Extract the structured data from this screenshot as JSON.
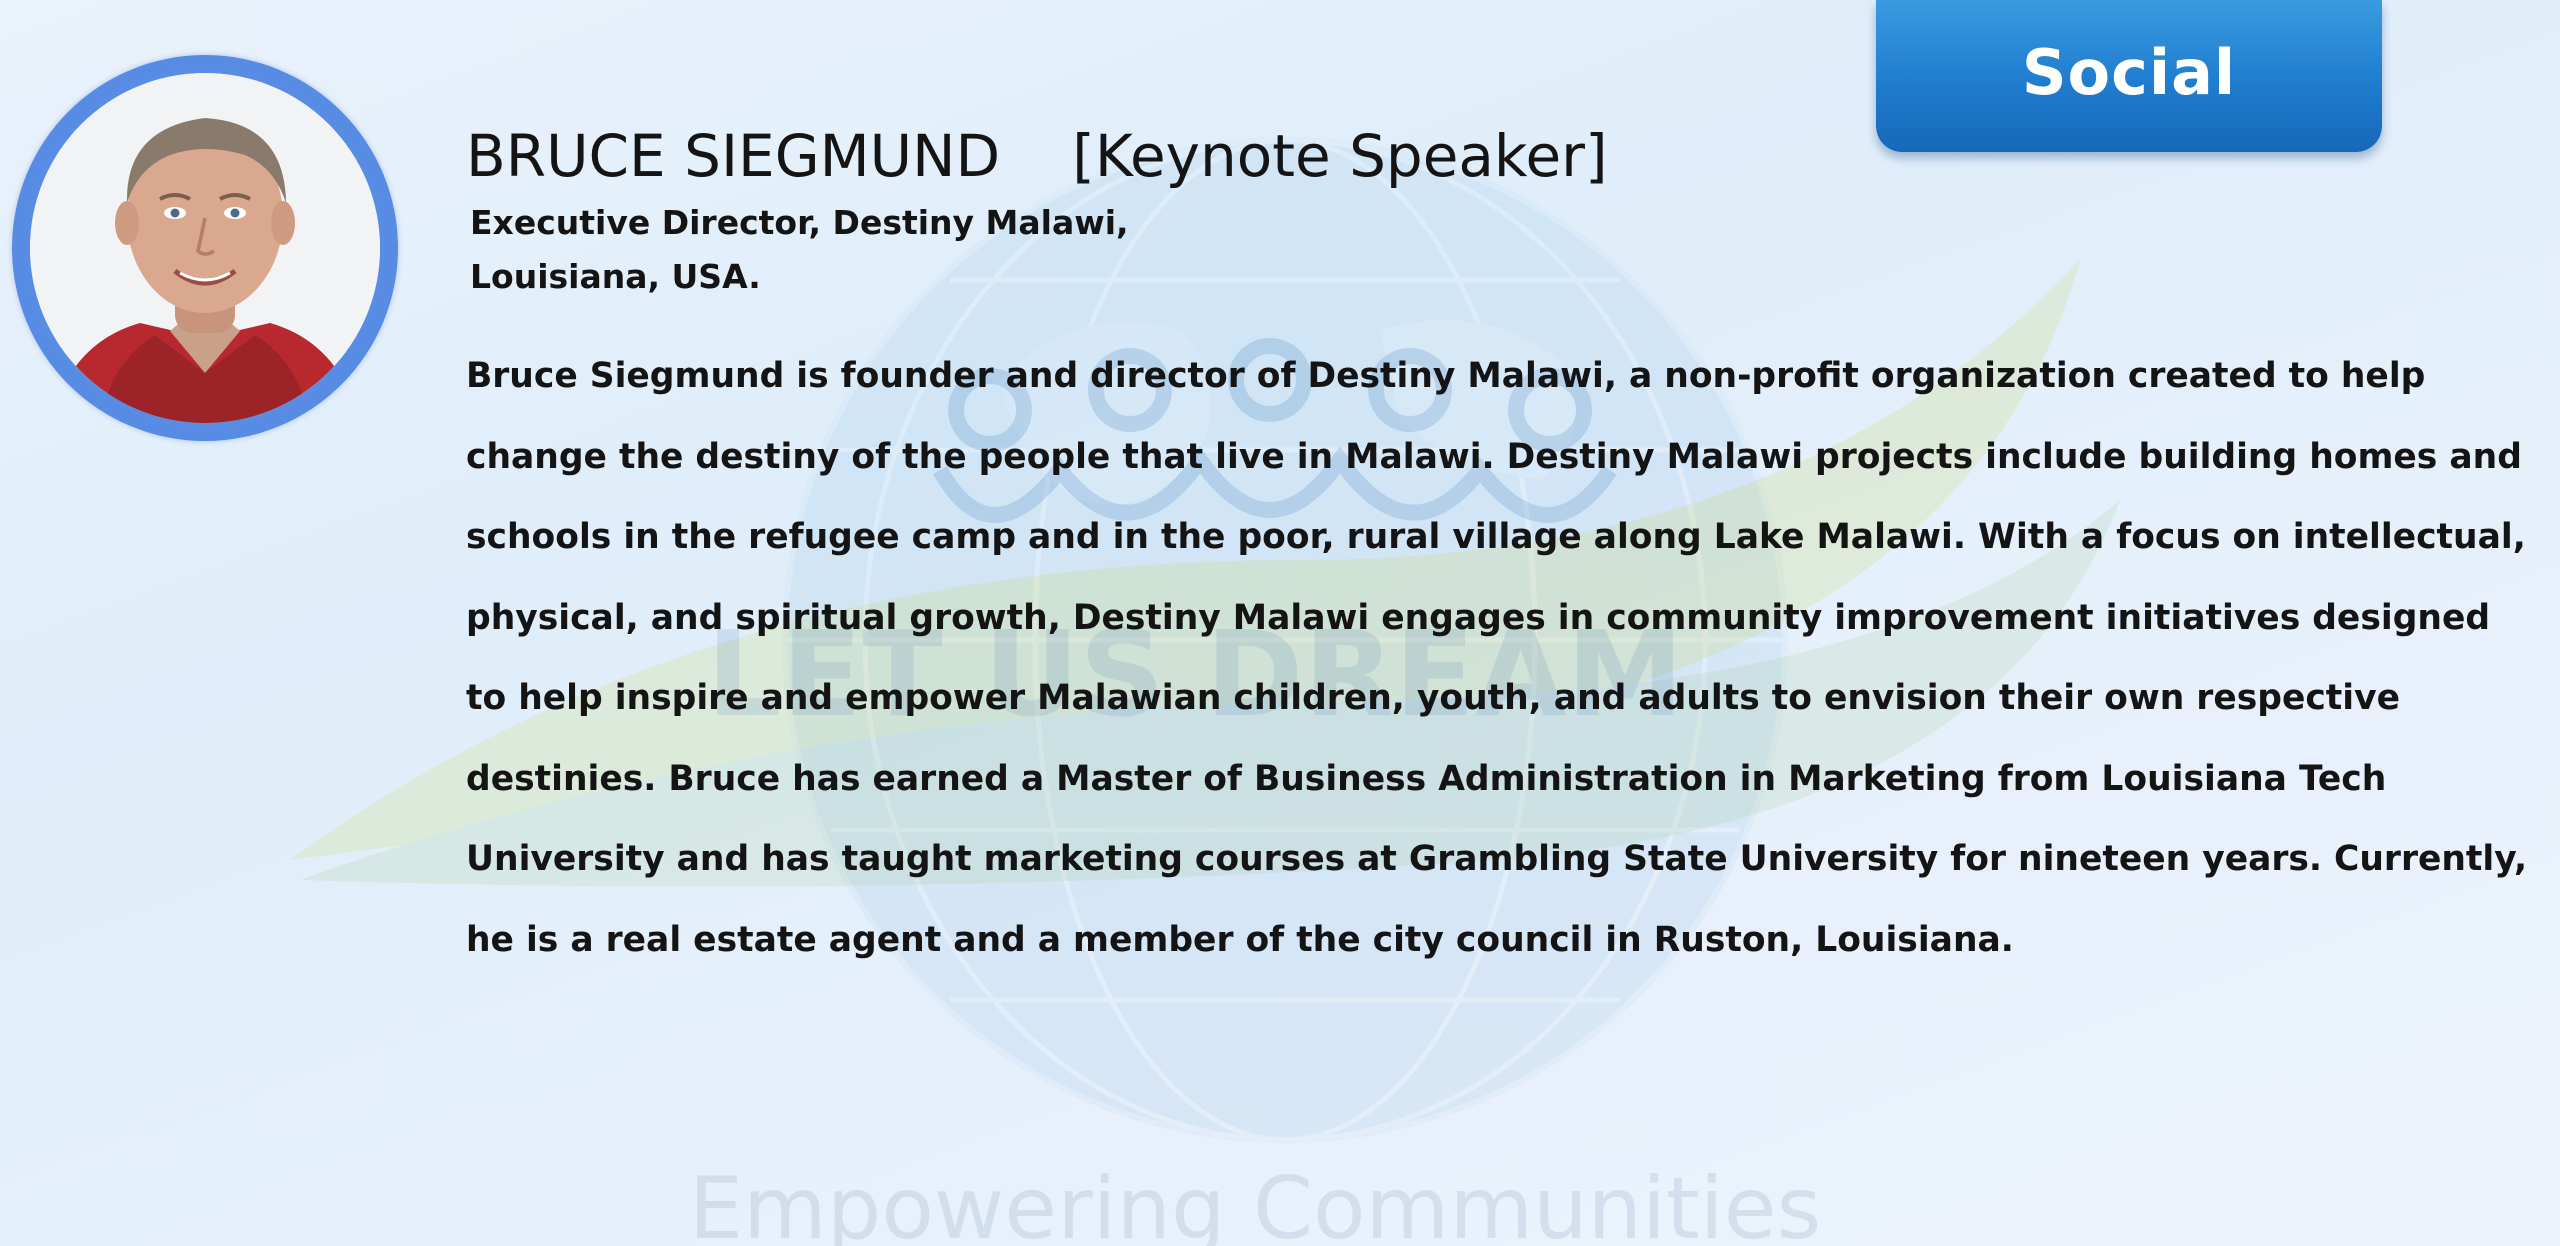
{
  "badge": {
    "label": "Social"
  },
  "speaker": {
    "name": "BRUCE SIEGMUND",
    "role": "[Keynote Speaker]",
    "affiliation_line1": "Executive Director, Destiny Malawi,",
    "affiliation_line2": "Louisiana, USA.",
    "bio": "Bruce Siegmund is founder and director of Destiny Malawi, a non-profit organization created to help change the destiny of the people that live in Malawi. Destiny Malawi projects include building homes and schools in the refugee camp and in the poor, rural village along Lake Malawi. With a focus on intellectual, physical, and spiritual growth, Destiny Malawi engages in community improvement initiatives designed to help inspire and empower Malawian children, youth, and adults to envision their own respective destinies. Bruce has earned a Master of Business Administration in Marketing from Louisiana Tech University and has taught marketing courses at Grambling State University for nineteen years. Currently, he is a real estate agent and a member of the city council in Ruston, Louisiana."
  },
  "watermark": {
    "banner_text": "LET US DREAM",
    "tagline": "Empowering Communities"
  },
  "colors": {
    "badge": "#1f7ccf",
    "avatar_ring": "#5b8fe6",
    "text": "#141414"
  }
}
